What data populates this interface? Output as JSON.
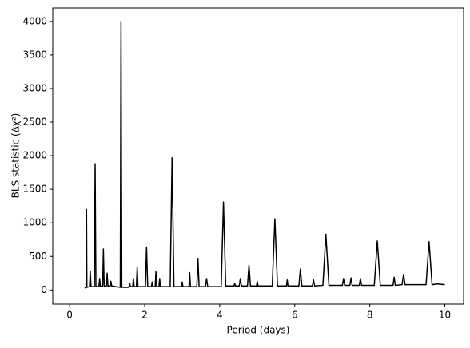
{
  "chart_data": {
    "type": "line",
    "xlabel": "Period (days)",
    "ylabel": "BLS statistic (Δχ²)",
    "color": "#000000",
    "xlim": [
      -0.45,
      10.5
    ],
    "ylim": [
      -210,
      4200
    ],
    "xticks": [
      0,
      2,
      4,
      6,
      8,
      10
    ],
    "yticks": [
      0,
      500,
      1000,
      1500,
      2000,
      2500,
      3000,
      3500,
      4000
    ],
    "x": [
      0.4,
      0.44,
      0.45,
      0.46,
      0.53,
      0.55,
      0.57,
      0.66,
      0.68,
      0.7,
      0.78,
      0.8,
      0.82,
      0.88,
      0.9,
      0.92,
      0.98,
      1.0,
      1.02,
      1.08,
      1.1,
      1.12,
      1.35,
      1.37,
      1.39,
      1.58,
      1.6,
      1.62,
      1.68,
      1.7,
      1.72,
      1.78,
      1.8,
      1.82,
      2.02,
      2.05,
      2.08,
      2.18,
      2.2,
      2.22,
      2.28,
      2.3,
      2.32,
      2.38,
      2.4,
      2.42,
      2.68,
      2.73,
      2.78,
      2.98,
      3.0,
      3.02,
      3.18,
      3.2,
      3.22,
      3.39,
      3.42,
      3.45,
      3.62,
      3.65,
      3.68,
      4.04,
      4.1,
      4.16,
      4.38,
      4.4,
      4.42,
      4.52,
      4.55,
      4.58,
      4.74,
      4.78,
      4.82,
      4.98,
      5.0,
      5.02,
      5.4,
      5.47,
      5.54,
      5.78,
      5.8,
      5.82,
      6.11,
      6.15,
      6.19,
      6.47,
      6.5,
      6.53,
      6.75,
      6.83,
      6.91,
      7.27,
      7.3,
      7.33,
      7.47,
      7.5,
      7.53,
      7.72,
      7.75,
      7.78,
      8.12,
      8.2,
      8.28,
      8.62,
      8.65,
      8.68,
      8.86,
      8.9,
      8.94,
      9.5,
      9.58,
      9.66,
      9.8,
      10.0
    ],
    "values": [
      30,
      40,
      1200,
      40,
      50,
      280,
      50,
      50,
      1880,
      50,
      50,
      170,
      50,
      60,
      610,
      60,
      60,
      250,
      60,
      60,
      130,
      60,
      40,
      4000,
      40,
      40,
      100,
      50,
      50,
      170,
      50,
      50,
      340,
      50,
      50,
      640,
      50,
      50,
      120,
      50,
      50,
      270,
      50,
      50,
      170,
      50,
      50,
      1970,
      50,
      50,
      120,
      50,
      50,
      260,
      50,
      50,
      470,
      50,
      50,
      170,
      50,
      50,
      1310,
      60,
      60,
      100,
      60,
      60,
      170,
      60,
      60,
      370,
      60,
      60,
      130,
      60,
      60,
      1060,
      60,
      60,
      150,
      60,
      60,
      310,
      60,
      60,
      150,
      60,
      70,
      830,
      70,
      70,
      170,
      70,
      70,
      180,
      70,
      70,
      170,
      70,
      70,
      730,
      70,
      70,
      190,
      70,
      80,
      230,
      80,
      80,
      720,
      80,
      90,
      80
    ]
  }
}
